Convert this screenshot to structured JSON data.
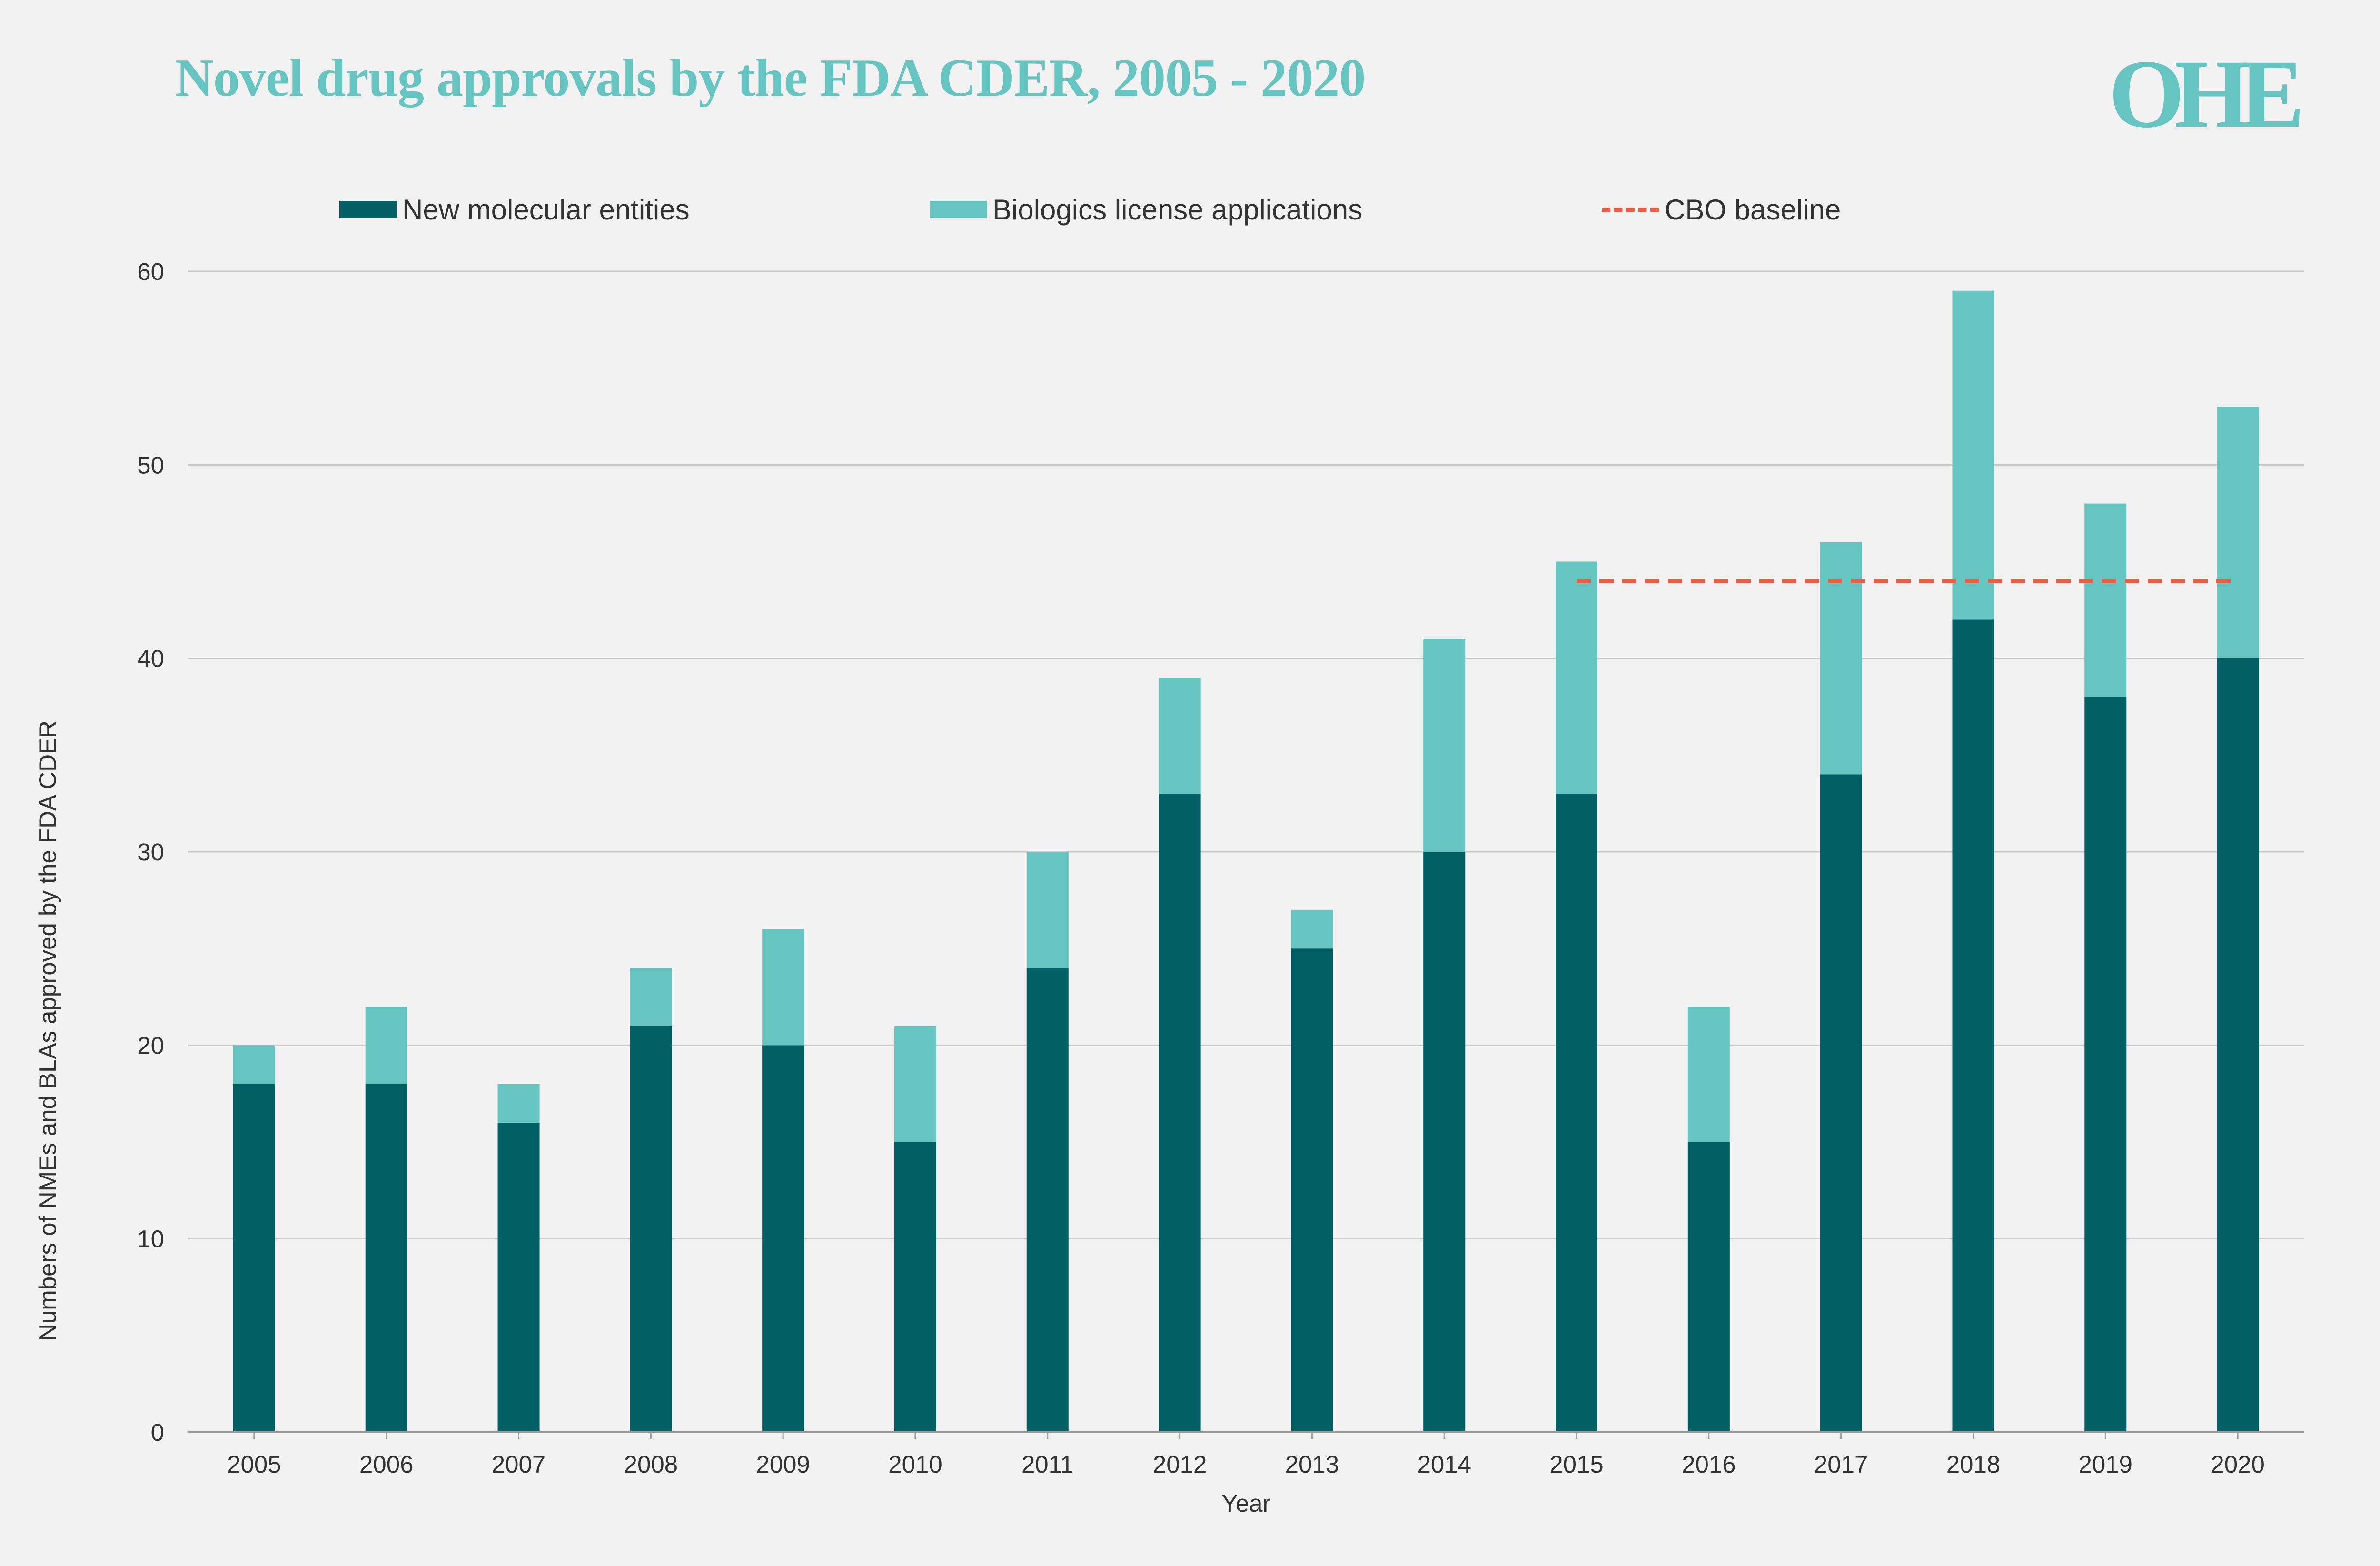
{
  "chart_data": {
    "type": "bar",
    "stacked": true,
    "title": "Novel drug approvals by the FDA CDER, 2005 - 2020",
    "xlabel": "Year",
    "ylabel": "Numbers of NMEs and BLAs approved by the FDA CDER",
    "ylim": [
      0,
      60
    ],
    "yticks": [
      "0",
      "10",
      "20",
      "30",
      "40",
      "50",
      "60"
    ],
    "grid": true,
    "legend_position": "top",
    "categories": [
      "2005",
      "2006",
      "2007",
      "2008",
      "2009",
      "2010",
      "2011",
      "2012",
      "2013",
      "2014",
      "2015",
      "2016",
      "2017",
      "2018",
      "2019",
      "2020"
    ],
    "series": [
      {
        "name": "New molecular entities",
        "color": "#025f63",
        "values": [
          18,
          18,
          16,
          21,
          20,
          15,
          24,
          33,
          25,
          30,
          33,
          15,
          34,
          42,
          38,
          40
        ]
      },
      {
        "name": "Biologics license applications",
        "color": "#66c5c0",
        "values": [
          2,
          4,
          2,
          3,
          6,
          6,
          6,
          6,
          2,
          11,
          12,
          7,
          12,
          17,
          10,
          13
        ]
      }
    ],
    "baseline": {
      "name": "CBO baseline",
      "value": 44,
      "from": "2015",
      "to": "2020",
      "color": "#e85d43",
      "style": "dashed"
    }
  },
  "logo": {
    "text": "OHE"
  }
}
